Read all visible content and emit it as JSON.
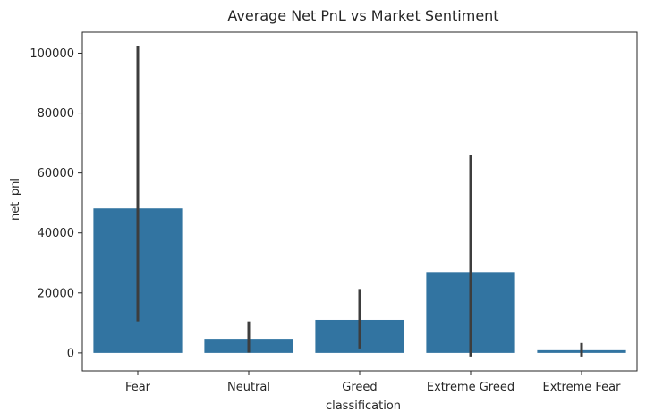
{
  "chart_data": {
    "type": "bar",
    "title": "Average Net PnL vs Market Sentiment",
    "xlabel": "classification",
    "ylabel": "net_pnl",
    "categories": [
      "Fear",
      "Neutral",
      "Greed",
      "Extreme Greed",
      "Extreme Fear"
    ],
    "values": [
      48200,
      4700,
      11000,
      27000,
      900
    ],
    "error_low": [
      10500,
      100,
      1500,
      -1200,
      -1200
    ],
    "error_high": [
      102500,
      10500,
      21300,
      66000,
      3300
    ],
    "ylim": [
      -6000,
      107000
    ],
    "yticks": [
      0,
      20000,
      40000,
      60000,
      80000,
      100000
    ],
    "ytick_labels": [
      "0",
      "20000",
      "40000",
      "60000",
      "80000",
      "100000"
    ],
    "bar_color": "#3274a1",
    "errorbar_color": "#3d3d3d",
    "grid": false,
    "legend": "none"
  }
}
